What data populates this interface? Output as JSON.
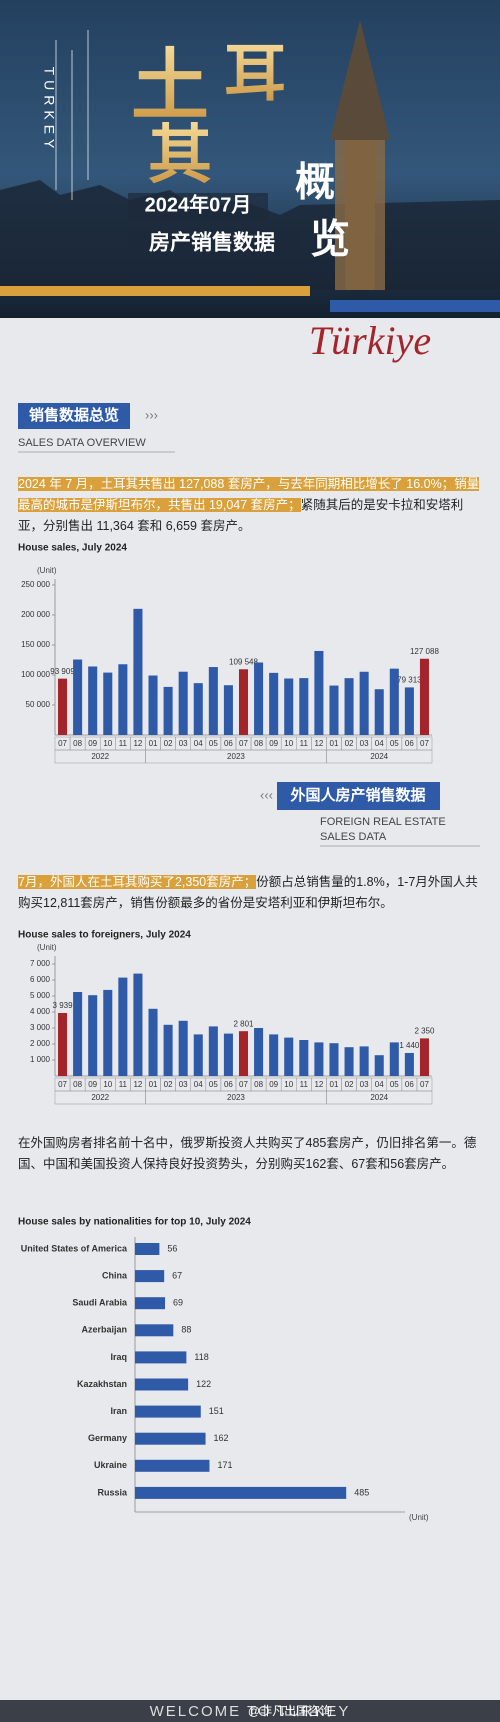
{
  "header": {
    "vertical_label": "TURKEY",
    "title_chars": [
      "土",
      "耳",
      "其"
    ],
    "subtitle_lines": [
      "2024年07月",
      "房产销售数据"
    ],
    "overview_chars": [
      "概",
      "览"
    ],
    "script": "Türkiye"
  },
  "sections": [
    {
      "title": "销售数据总览",
      "subtitle_lines": [
        "SALES DATA OVERVIEW"
      ]
    },
    {
      "title": "外国人房产销售数据",
      "subtitle_lines": [
        "FOREIGN REAL ESTATE",
        "SALES DATA"
      ]
    }
  ],
  "paragraphs": [
    {
      "highlight": "2024 年 7 月，土耳其共售出 127,088 套房产，与去年同期相比增长了 16.0%；销量最高的城市是伊斯坦布尔，共售出 19,047 套房产；",
      "text": "紧随其后的是安卡拉和安塔利亚，分别售出 11,364 套和 6,659 套房产。"
    },
    {
      "highlight": "7月，外国人在土耳其购买了2,350套房产；",
      "text": "份额占总销售量的1.8%，1-7月外国人共购买12,811套房产，销售份额最多的省份是安塔利亚和伊斯坦布尔。"
    },
    {
      "text": "在外国购房者排名前十名中，俄罗斯投资人共购买了485套房产，仍旧排名第一。德国、中国和美国投资人保持良好投资势头，分别购买162套、67套和56套房产。"
    }
  ],
  "chart_data": [
    {
      "type": "bar",
      "title": "House sales, July 2024",
      "unit_label": "(Unit)",
      "categories": [
        "07",
        "08",
        "09",
        "10",
        "11",
        "12",
        "01",
        "02",
        "03",
        "04",
        "05",
        "06",
        "07",
        "08",
        "09",
        "10",
        "11",
        "12",
        "01",
        "02",
        "03",
        "04",
        "05",
        "06",
        "07"
      ],
      "years": [
        "2022",
        "2023",
        "2024"
      ],
      "values": [
        93909,
        125808,
        114209,
        104010,
        117887,
        210263,
        99118,
        80152,
        105476,
        86424,
        113276,
        82987,
        109548,
        120827,
        103567,
        94181,
        94810,
        140051,
        82388,
        94727,
        105394,
        76288,
        110588,
        79313,
        127088
      ],
      "value_labels": [
        "93 909",
        null,
        null,
        null,
        null,
        null,
        null,
        null,
        null,
        null,
        null,
        null,
        "109 548",
        null,
        null,
        null,
        null,
        null,
        null,
        null,
        null,
        null,
        null,
        "79 313",
        "127 088"
      ],
      "colors": [
        "#a3242a",
        "#2f5aa8",
        "#2f5aa8",
        "#2f5aa8",
        "#2f5aa8",
        "#2f5aa8",
        "#2f5aa8",
        "#2f5aa8",
        "#2f5aa8",
        "#2f5aa8",
        "#2f5aa8",
        "#2f5aa8",
        "#a3242a",
        "#2f5aa8",
        "#2f5aa8",
        "#2f5aa8",
        "#2f5aa8",
        "#2f5aa8",
        "#2f5aa8",
        "#2f5aa8",
        "#2f5aa8",
        "#2f5aa8",
        "#2f5aa8",
        "#2f5aa8",
        "#a3242a"
      ],
      "ylim": [
        0,
        260000
      ],
      "yticks": [
        {
          "value": 50000,
          "label": "50 000"
        },
        {
          "value": 100000,
          "label": "100 000"
        },
        {
          "value": 150000,
          "label": "150 000"
        },
        {
          "value": 200000,
          "label": "200 000"
        },
        {
          "value": 250000,
          "label": "250 000"
        }
      ]
    },
    {
      "type": "bar",
      "title": "House sales to foreigners, July 2024",
      "unit_label": "(Unit)",
      "categories": [
        "07",
        "08",
        "09",
        "10",
        "11",
        "12",
        "01",
        "02",
        "03",
        "04",
        "05",
        "06",
        "07",
        "08",
        "09",
        "10",
        "11",
        "12",
        "01",
        "02",
        "03",
        "04",
        "05",
        "06",
        "07"
      ],
      "years": [
        "2022",
        "2023",
        "2024"
      ],
      "values": [
        3939,
        5250,
        5050,
        5380,
        6150,
        6400,
        4200,
        3200,
        3450,
        2600,
        3100,
        2650,
        2801,
        3000,
        2600,
        2400,
        2250,
        2100,
        2050,
        1800,
        1850,
        1300,
        2100,
        1440,
        2350
      ],
      "value_labels": [
        "3 939",
        null,
        null,
        null,
        null,
        null,
        null,
        null,
        null,
        null,
        null,
        null,
        "2 801",
        null,
        null,
        null,
        null,
        null,
        null,
        null,
        null,
        null,
        null,
        "1 440",
        "2 350"
      ],
      "colors": [
        "#a3242a",
        "#2f5aa8",
        "#2f5aa8",
        "#2f5aa8",
        "#2f5aa8",
        "#2f5aa8",
        "#2f5aa8",
        "#2f5aa8",
        "#2f5aa8",
        "#2f5aa8",
        "#2f5aa8",
        "#2f5aa8",
        "#a3242a",
        "#2f5aa8",
        "#2f5aa8",
        "#2f5aa8",
        "#2f5aa8",
        "#2f5aa8",
        "#2f5aa8",
        "#2f5aa8",
        "#2f5aa8",
        "#2f5aa8",
        "#2f5aa8",
        "#2f5aa8",
        "#a3242a"
      ],
      "ylim": [
        0,
        7500
      ],
      "yticks": [
        {
          "value": 1000,
          "label": "1 000"
        },
        {
          "value": 2000,
          "label": "2 000"
        },
        {
          "value": 3000,
          "label": "3 000"
        },
        {
          "value": 4000,
          "label": "4 000"
        },
        {
          "value": 5000,
          "label": "5 000"
        },
        {
          "value": 6000,
          "label": "6 000"
        },
        {
          "value": 7000,
          "label": "7 000"
        }
      ]
    },
    {
      "type": "hbar",
      "title": "House sales by nationalities for top 10, July 2024",
      "unit_label": "(Unit)",
      "categories": [
        "United States of America",
        "China",
        "Saudi Arabia",
        "Azerbaijan",
        "Iraq",
        "Kazakhstan",
        "Iran",
        "Germany",
        "Ukraine",
        "Russia"
      ],
      "values": [
        56,
        67,
        69,
        88,
        118,
        122,
        151,
        162,
        171,
        485
      ],
      "color": "#2f5aa8",
      "xlim": [
        0,
        620
      ]
    }
  ],
  "footer": {
    "text": "WELCOME TO TURKEY",
    "watermark": "@非凡出国咨询"
  }
}
